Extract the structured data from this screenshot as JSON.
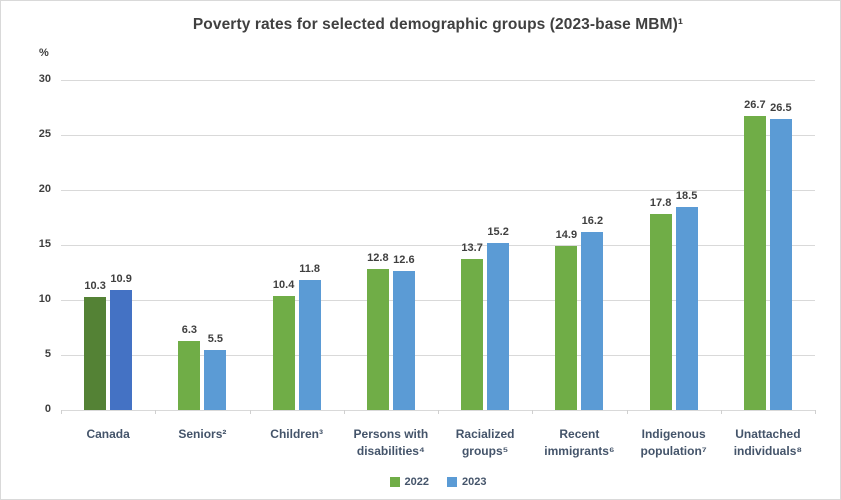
{
  "chart_data": {
    "type": "bar",
    "title": "Poverty rates for selected demographic groups (2023-base MBM)¹",
    "ylabel": "%",
    "ylim": [
      0,
      30
    ],
    "yticks": [
      0,
      5,
      10,
      15,
      20,
      25,
      30
    ],
    "grid": true,
    "legend_position": "bottom",
    "categories": [
      "Canada",
      "Seniors²",
      "Children³",
      "Persons with disabilities⁴",
      "Racialized groups⁵",
      "Recent immigrants⁶",
      "Indigenous population⁷",
      "Unattached individuals⁸"
    ],
    "highlight_category": "Canada",
    "series": [
      {
        "name": "2022",
        "color": "#70AD47",
        "highlight_color": "#548235",
        "values": [
          10.3,
          6.3,
          10.4,
          12.8,
          13.7,
          14.9,
          17.8,
          26.7
        ]
      },
      {
        "name": "2023",
        "color": "#5B9BD5",
        "highlight_color": "#4472C4",
        "values": [
          10.9,
          5.5,
          11.8,
          12.6,
          15.2,
          16.2,
          18.5,
          26.5
        ]
      }
    ]
  },
  "colors": {
    "background": "#ffffff",
    "border": "#d9d9d9",
    "gridline": "#d9d9d9",
    "title_text": "#404040",
    "value_text": "#3f3f3f",
    "category_text": "#44546a",
    "green_2022": "#70AD47",
    "blue_2023": "#5B9BD5",
    "dark_green_canada": "#548235",
    "dark_blue_canada": "#4472C4"
  }
}
